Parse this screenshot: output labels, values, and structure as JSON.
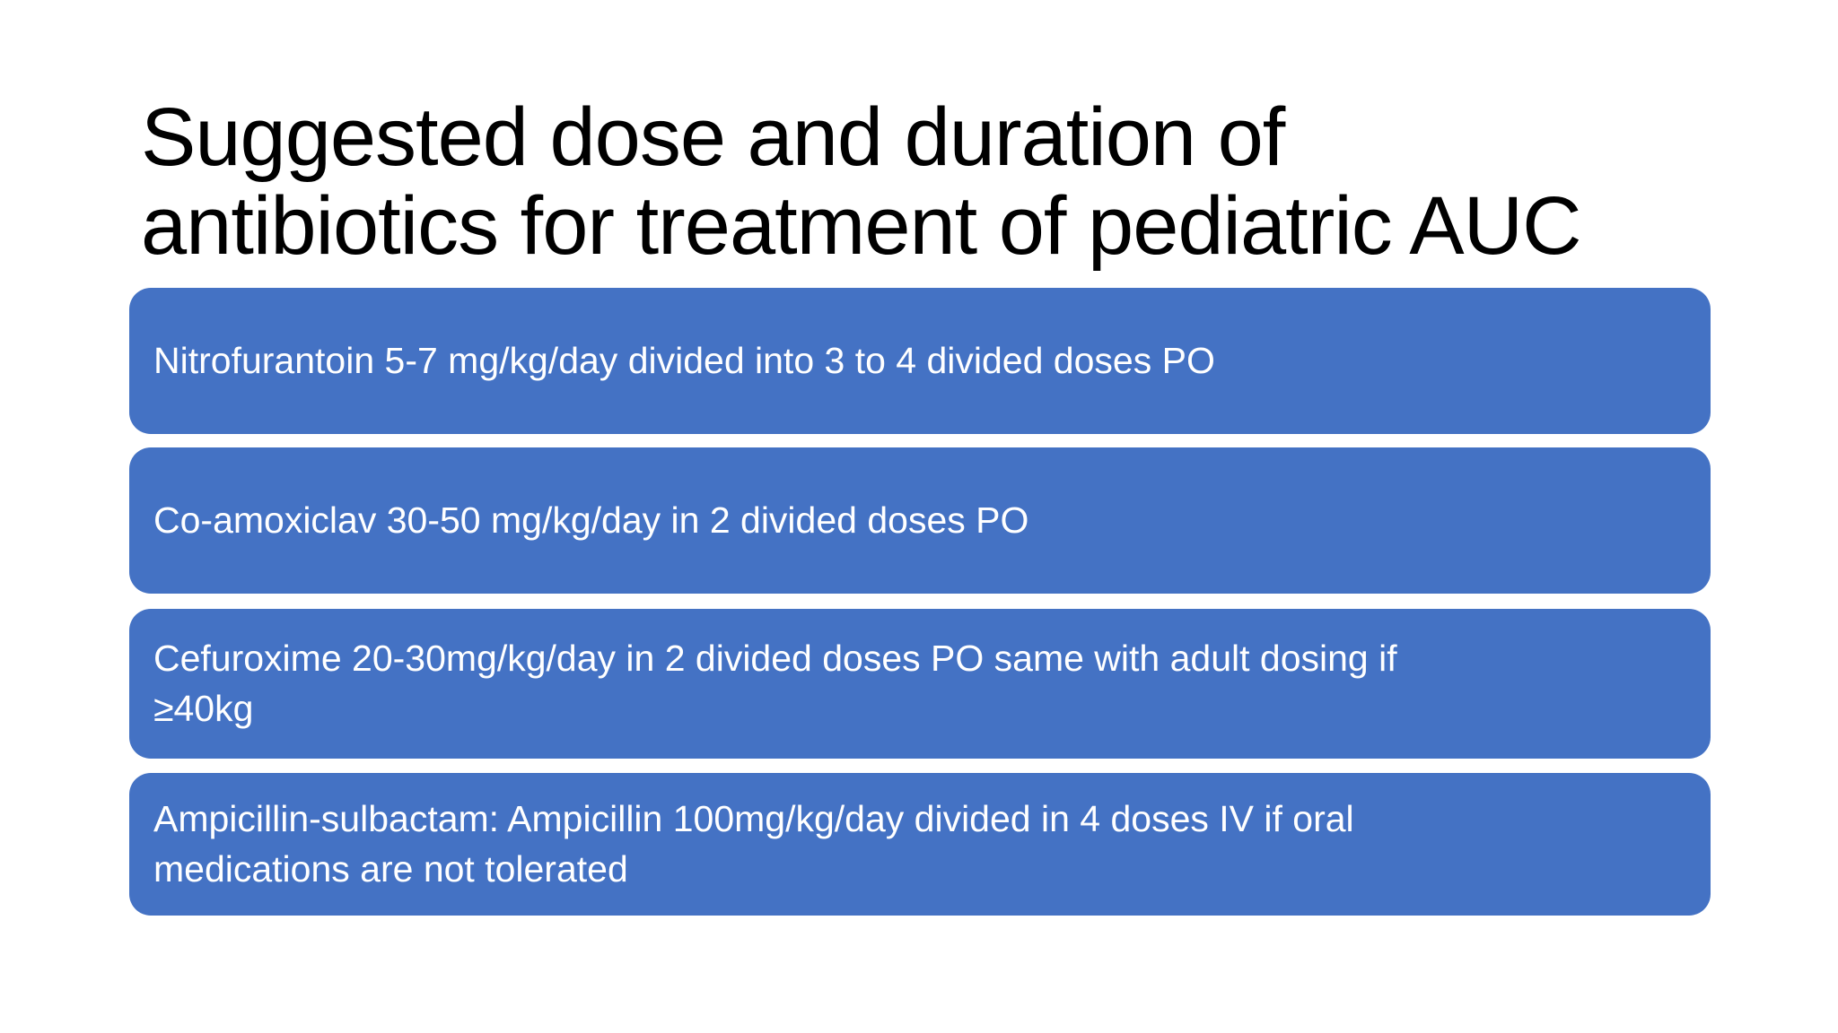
{
  "slide": {
    "title": "Suggested dose and duration of\nantibiotics for treatment of pediatric AUC",
    "boxes": [
      {
        "id": "nitrofurantoin",
        "text": "Nitrofurantoin 5-7 mg/kg/day divided into 3 to 4 divided doses PO"
      },
      {
        "id": "co-amoxiclav",
        "text": "Co-amoxiclav 30-50 mg/kg/day in 2 divided doses PO"
      },
      {
        "id": "cefuroxime",
        "text": "Cefuroxime 20-30mg/kg/day in 2 divided doses PO same with adult dosing if\n≥40kg"
      },
      {
        "id": "ampicillin-sulbactam",
        "text": "Ampicillin-sulbactam: Ampicillin 100mg/kg/day divided in 4 doses IV if oral\nmedications are not tolerated"
      }
    ],
    "colors": {
      "background": "#FFFFFF",
      "title_text": "#000000",
      "box_fill": "#4472C4",
      "box_text": "#FFFFFF"
    }
  }
}
